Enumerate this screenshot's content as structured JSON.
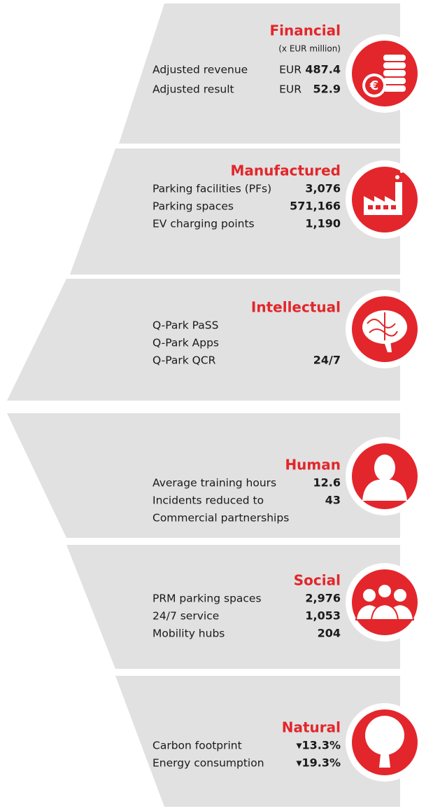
{
  "sections": [
    {
      "title": "Financial",
      "subtitle": "(x EUR million)",
      "items": [
        {
          "label": "Adjusted revenue",
          "unit": "EUR",
          "value": "487.4"
        },
        {
          "label": "Adjusted result",
          "unit": "EUR",
          "value": "52.9"
        }
      ]
    },
    {
      "title": "Manufactured",
      "items": [
        {
          "label": "Parking facilities (PFs)",
          "value": "3,076"
        },
        {
          "label": "Parking spaces",
          "value": "571,166"
        },
        {
          "label": "EV charging points",
          "value": "1,190"
        }
      ]
    },
    {
      "title": "Intellectual",
      "items": [
        {
          "label": "Q-Park PaSS"
        },
        {
          "label": "Q-Park Apps"
        },
        {
          "label": "Q-Park QCR",
          "value": "24/7"
        }
      ]
    },
    {
      "title": "Human",
      "items": [
        {
          "label": "Average training hours",
          "value": "12.6"
        },
        {
          "label": "Incidents reduced to",
          "value": "43"
        },
        {
          "label": "Commercial partnerships"
        }
      ]
    },
    {
      "title": "Social",
      "items": [
        {
          "label": "PRM parking spaces",
          "value": "2,976"
        },
        {
          "label": "24/7 service",
          "value": "1,053"
        },
        {
          "label": "Mobility hubs",
          "value": "204"
        }
      ]
    },
    {
      "title": "Natural",
      "items": [
        {
          "label": "Carbon footprint",
          "value": "▾13.3%"
        },
        {
          "label": "Energy consumption",
          "value": "▾19.3%"
        }
      ]
    }
  ]
}
